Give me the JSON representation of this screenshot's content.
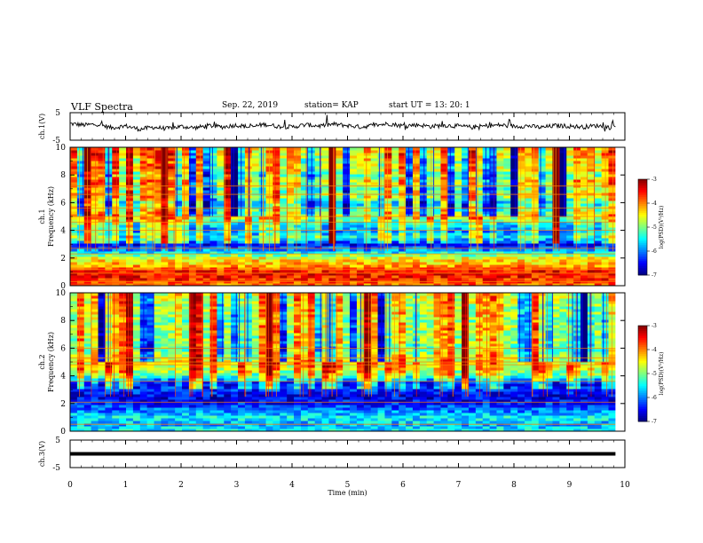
{
  "header": {
    "title": "VLF Spectra",
    "date": "Sep. 22, 2019",
    "station": "station= KAP",
    "start": "start  UT  =   13: 20: 1"
  },
  "colors": {
    "spectrogram_scale": [
      "#00007f",
      "#0000ff",
      "#007fff",
      "#00ffff",
      "#7fff7f",
      "#ffff00",
      "#ff7f00",
      "#ff0000",
      "#7f0000"
    ],
    "trace": "#000000"
  },
  "chart_data": [
    {
      "type": "line",
      "ylabel": "ch.1(V)",
      "xlim": [
        0,
        10
      ],
      "ylim": [
        -5,
        5
      ],
      "yticks": [
        "5",
        "-5"
      ],
      "series": [
        {
          "x": [
            0.0,
            0.25,
            0.5,
            0.75,
            1.0,
            1.25,
            1.5,
            1.75,
            2.0,
            2.25,
            2.5,
            2.75,
            3.0,
            3.25,
            3.5,
            3.75,
            4.0,
            4.25,
            4.5,
            4.75,
            5.0,
            5.25,
            5.5,
            5.75,
            6.0,
            6.25,
            6.5,
            6.75,
            7.0,
            7.25,
            7.5,
            7.75,
            8.0,
            8.25,
            8.5,
            8.75,
            9.0,
            9.25,
            9.5,
            9.75,
            9.83
          ],
          "y": [
            1.0,
            0.5,
            0.8,
            -0.5,
            0.2,
            -1.0,
            -0.3,
            -0.8,
            0.0,
            -0.5,
            0.3,
            -0.2,
            0.5,
            -0.3,
            0.8,
            0.0,
            -0.2,
            0.6,
            0.2,
            0.8,
            0.3,
            -0.2,
            0.5,
            1.0,
            0.2,
            0.6,
            0.0,
            0.4,
            0.1,
            -0.3,
            0.2,
            0.5,
            0.0,
            0.2,
            -0.4,
            0.3,
            0.1,
            -0.2,
            0.3,
            -0.4,
            0.0
          ]
        }
      ]
    },
    {
      "type": "heatmap",
      "ylabel": "ch.1",
      "ylabel2": "Frequency (kHz)",
      "xlim": [
        0,
        10
      ],
      "ylim": [
        0,
        10
      ],
      "yticks": [
        "0",
        "2",
        "4",
        "6",
        "8",
        "10"
      ],
      "colorbar": {
        "label": "log(PSD)(V²/Hz)",
        "ticks": [
          "-3",
          "-4",
          "-5",
          "-6",
          "-7"
        ],
        "range": [
          -7,
          -3
        ]
      },
      "frequency_profile": [
        [
          0.0,
          -4.0
        ],
        [
          0.5,
          -3.6
        ],
        [
          1.0,
          -3.5
        ],
        [
          1.5,
          -4.2
        ],
        [
          2.0,
          -4.5
        ],
        [
          2.5,
          -5.8
        ],
        [
          3.0,
          -6.5
        ],
        [
          3.5,
          -5.5
        ],
        [
          4.0,
          -6.0
        ],
        [
          4.5,
          -5.6
        ],
        [
          5.0,
          -4.8
        ],
        [
          5.5,
          -5.2
        ],
        [
          6.0,
          -5.7
        ],
        [
          6.5,
          -4.8
        ],
        [
          7.0,
          -5.2
        ],
        [
          7.5,
          -4.6
        ],
        [
          8.0,
          -5.3
        ],
        [
          8.5,
          -4.6
        ],
        [
          9.0,
          -4.9
        ],
        [
          9.5,
          -4.5
        ],
        [
          10.0,
          -4.6
        ]
      ],
      "strong_lines_khz": [
        0.3,
        0.9,
        1.2,
        2.3,
        2.7,
        4.0,
        4.6,
        5.0,
        5.6,
        6.6,
        7.2
      ]
    },
    {
      "type": "heatmap",
      "ylabel": "ch.2",
      "ylabel2": "Frequency (kHz)",
      "xlim": [
        0,
        10
      ],
      "ylim": [
        0,
        10
      ],
      "yticks": [
        "0",
        "2",
        "4",
        "6",
        "8",
        "10"
      ],
      "colorbar": {
        "label": "log(PSD)(V²/Hz)",
        "ticks": [
          "-3",
          "-4",
          "-5",
          "-6",
          "-7"
        ],
        "range": [
          -7,
          -3
        ]
      },
      "frequency_profile": [
        [
          0.0,
          -5.5
        ],
        [
          0.5,
          -5.8
        ],
        [
          1.0,
          -5.5
        ],
        [
          1.5,
          -6.0
        ],
        [
          2.0,
          -6.4
        ],
        [
          2.5,
          -6.6
        ],
        [
          3.0,
          -6.3
        ],
        [
          3.5,
          -6.5
        ],
        [
          4.0,
          -5.3
        ],
        [
          4.5,
          -4.8
        ],
        [
          5.0,
          -4.6
        ],
        [
          5.5,
          -4.8
        ],
        [
          6.0,
          -5.2
        ],
        [
          6.5,
          -4.9
        ],
        [
          7.0,
          -5.0
        ],
        [
          7.5,
          -4.8
        ],
        [
          8.0,
          -5.1
        ],
        [
          8.5,
          -4.8
        ],
        [
          9.0,
          -4.9
        ],
        [
          9.5,
          -4.7
        ],
        [
          10.0,
          -4.7
        ]
      ],
      "strong_lines_khz": [
        0.5,
        2.1,
        3.6,
        4.8,
        5.0,
        5.3,
        6.0
      ]
    },
    {
      "type": "line",
      "ylabel": "ch.3(V)",
      "xlabel": "Time  (min)",
      "xlim": [
        0,
        10
      ],
      "ylim": [
        -5,
        5
      ],
      "yticks": [
        "5",
        "-5"
      ],
      "xticks": [
        "0",
        "1",
        "2",
        "3",
        "4",
        "5",
        "6",
        "7",
        "8",
        "9",
        "10"
      ],
      "series": [
        {
          "x": [
            0,
            9.83
          ],
          "y": [
            0,
            0
          ]
        }
      ]
    }
  ]
}
